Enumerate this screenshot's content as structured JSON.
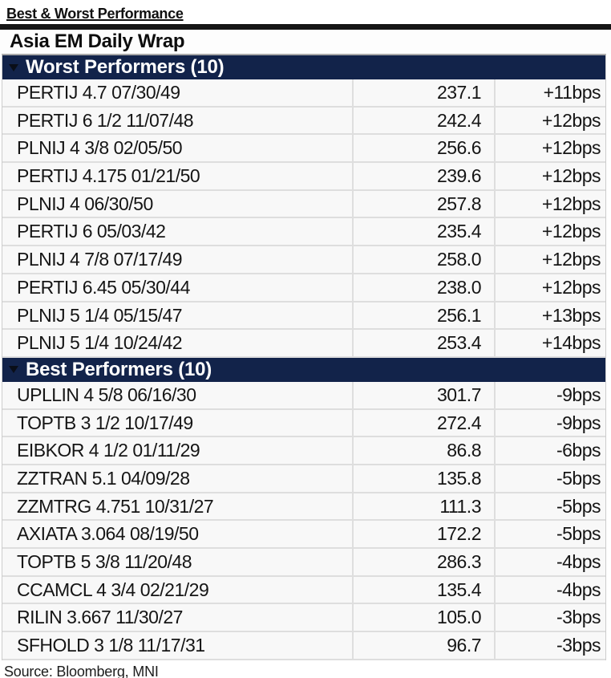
{
  "header": {
    "title": "Best & Worst Performance",
    "subtitle": "Asia EM Daily Wrap"
  },
  "footer": {
    "source": "Source: Bloomberg, MNI"
  },
  "icons": {
    "section_collapse": "triangle-down"
  },
  "colors": {
    "section_header_bar": "#12234a",
    "section_header_text": "#ffffff",
    "row_background": "#f8f8f8",
    "grid_line": "#dedede",
    "top_rule": "#161616",
    "body_text": "#151515"
  },
  "chart_data": {
    "type": "table",
    "title": "Asia EM Daily Wrap",
    "sections": [
      {
        "label": "Worst Performers (10)",
        "rows": [
          {
            "name": "PERTIJ 4.7 07/30/49",
            "value": "237.1",
            "change": "+11bps"
          },
          {
            "name": "PERTIJ 6 1/2 11/07/48",
            "value": "242.4",
            "change": "+12bps"
          },
          {
            "name": "PLNIJ 4 3/8 02/05/50",
            "value": "256.6",
            "change": "+12bps"
          },
          {
            "name": "PERTIJ 4.175 01/21/50",
            "value": "239.6",
            "change": "+12bps"
          },
          {
            "name": "PLNIJ 4 06/30/50",
            "value": "257.8",
            "change": "+12bps"
          },
          {
            "name": "PERTIJ 6 05/03/42",
            "value": "235.4",
            "change": "+12bps"
          },
          {
            "name": "PLNIJ 4 7/8 07/17/49",
            "value": "258.0",
            "change": "+12bps"
          },
          {
            "name": "PERTIJ 6.45 05/30/44",
            "value": "238.0",
            "change": "+12bps"
          },
          {
            "name": "PLNIJ 5 1/4 05/15/47",
            "value": "256.1",
            "change": "+13bps"
          },
          {
            "name": "PLNIJ 5 1/4 10/24/42",
            "value": "253.4",
            "change": "+14bps"
          }
        ]
      },
      {
        "label": "Best Performers (10)",
        "rows": [
          {
            "name": "UPLLIN 4 5/8 06/16/30",
            "value": "301.7",
            "change": "-9bps"
          },
          {
            "name": "TOPTB 3 1/2 10/17/49",
            "value": "272.4",
            "change": "-9bps"
          },
          {
            "name": "EIBKOR 4 1/2 01/11/29",
            "value": "86.8",
            "change": "-6bps"
          },
          {
            "name": "ZZTRAN 5.1 04/09/28",
            "value": "135.8",
            "change": "-5bps"
          },
          {
            "name": "ZZMTRG 4.751 10/31/27",
            "value": "111.3",
            "change": "-5bps"
          },
          {
            "name": "AXIATA 3.064 08/19/50",
            "value": "172.2",
            "change": "-5bps"
          },
          {
            "name": "TOPTB 5 3/8 11/20/48",
            "value": "286.3",
            "change": "-4bps"
          },
          {
            "name": "CCAMCL 4 3/4 02/21/29",
            "value": "135.4",
            "change": "-4bps"
          },
          {
            "name": "RILIN 3.667 11/30/27",
            "value": "105.0",
            "change": "-3bps"
          },
          {
            "name": "SFHOLD 3 1/8 11/17/31",
            "value": "96.7",
            "change": "-3bps"
          }
        ]
      }
    ]
  }
}
